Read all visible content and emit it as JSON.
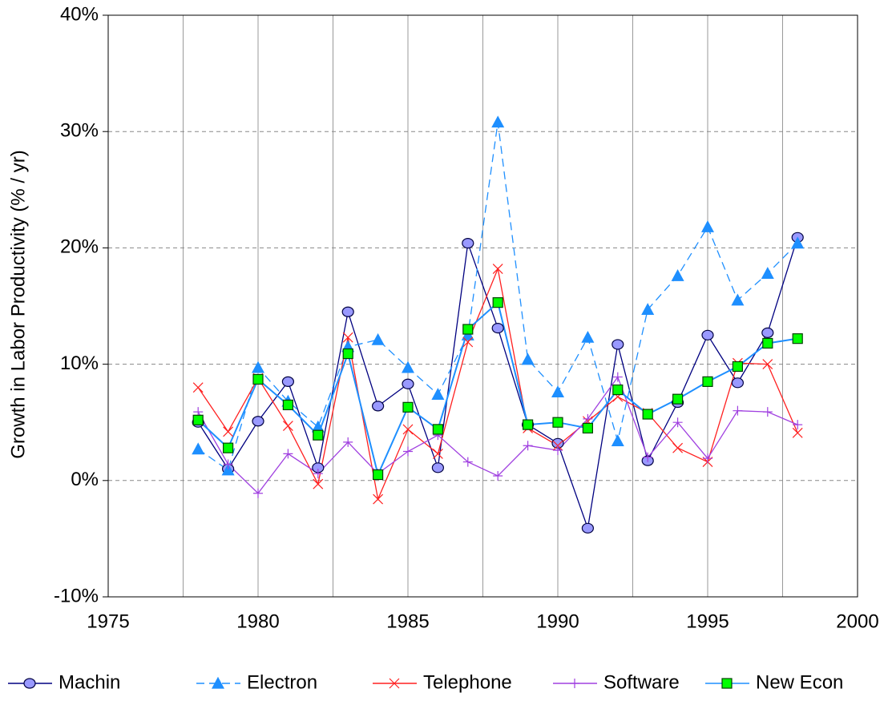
{
  "chart_data": {
    "type": "line",
    "y_label": "Growth in Labor Productivity (% / yr)",
    "x": [
      1978,
      1979,
      1980,
      1981,
      1982,
      1983,
      1984,
      1985,
      1986,
      1987,
      1988,
      1989,
      1990,
      1991,
      1992,
      1993,
      1994,
      1995,
      1996,
      1997,
      1998
    ],
    "series": [
      {
        "name": "Machin",
        "color": "#000080",
        "marker": "circle",
        "marker_color": "#9999ff",
        "dashed": false,
        "values": [
          5.0,
          1.0,
          5.1,
          8.5,
          1.1,
          14.5,
          6.4,
          8.3,
          1.1,
          20.4,
          13.1,
          4.8,
          3.2,
          -4.1,
          11.7,
          1.7,
          6.7,
          12.5,
          8.4,
          12.7,
          20.9
        ]
      },
      {
        "name": "Electron",
        "color": "#1e8fff",
        "marker": "triangle",
        "marker_color": "#1e8fff",
        "dashed": true,
        "values": [
          2.7,
          0.9,
          9.7,
          6.8,
          4.6,
          11.5,
          12.1,
          9.7,
          7.4,
          12.5,
          30.8,
          10.4,
          7.6,
          12.3,
          3.4,
          14.7,
          17.6,
          21.8,
          15.5,
          17.8,
          20.4
        ]
      },
      {
        "name": "Telephone",
        "color": "#ff2020",
        "marker": "x",
        "marker_color": "#ff2020",
        "dashed": false,
        "values": [
          8.0,
          4.2,
          8.8,
          4.7,
          -0.3,
          12.3,
          -1.6,
          4.4,
          2.3,
          11.9,
          18.2,
          4.5,
          3.0,
          5.1,
          7.2,
          5.8,
          2.8,
          1.6,
          10.1,
          10.0,
          4.1
        ]
      },
      {
        "name": "Software",
        "color": "#a040e0",
        "marker": "plus",
        "marker_color": "#a040e0",
        "dashed": false,
        "values": [
          5.9,
          1.4,
          -1.1,
          2.3,
          0.6,
          3.3,
          0.6,
          2.5,
          3.9,
          1.6,
          0.4,
          3.0,
          2.6,
          5.3,
          8.9,
          2.0,
          5.0,
          1.9,
          6.0,
          5.9,
          4.8
        ]
      },
      {
        "name": "New Econ",
        "color": "#1e8fff",
        "marker": "square",
        "marker_color": "#00ff00",
        "dashed": false,
        "values": [
          5.2,
          2.8,
          8.7,
          6.5,
          3.9,
          10.9,
          0.5,
          6.3,
          4.4,
          13.0,
          15.3,
          4.8,
          5.0,
          4.5,
          7.8,
          5.7,
          7.0,
          8.5,
          9.8,
          11.8,
          12.2
        ]
      }
    ],
    "xlim": [
      1975,
      2000
    ],
    "xticks": [
      1975,
      1980,
      1985,
      1990,
      1995,
      2000
    ],
    "xminorticks": [
      1977.5,
      1982.5,
      1987.5,
      1992.5,
      1997.5
    ],
    "ylim": [
      -10,
      40
    ],
    "yticks": [
      {
        "value": -10,
        "label": "-10%"
      },
      {
        "value": 0,
        "label": "0%"
      },
      {
        "value": 10,
        "label": "10%"
      },
      {
        "value": 20,
        "label": "20%"
      },
      {
        "value": 30,
        "label": "30%"
      },
      {
        "value": 40,
        "label": "40%"
      }
    ],
    "grid": true,
    "legend": "bottom"
  }
}
